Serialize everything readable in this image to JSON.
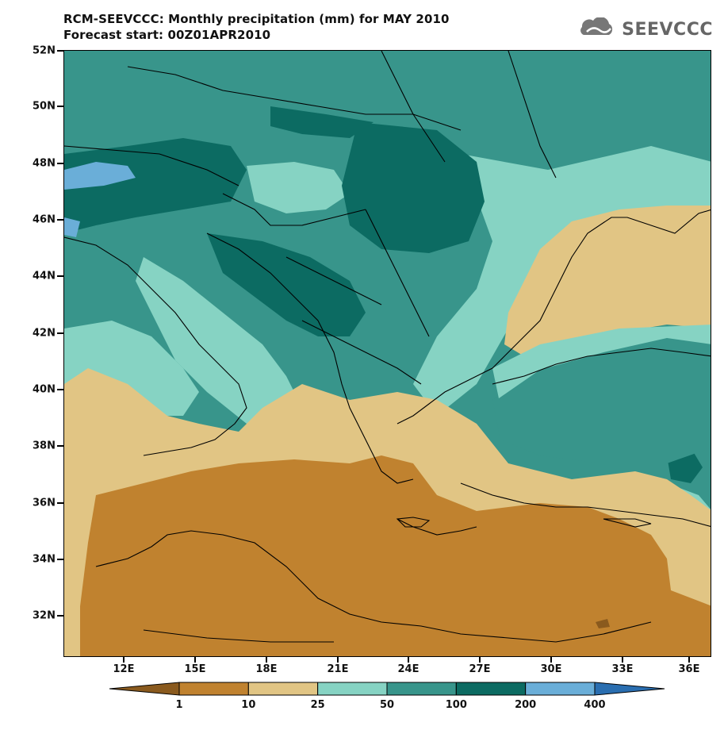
{
  "header": {
    "title_line1": "RCM-SEEVCCC: Monthly precipitation (mm) for MAY 2010",
    "title_line2": "Forecast start: 00Z01APR2010"
  },
  "logo": {
    "text": "SEEVCCC",
    "icon": "cloud-icon"
  },
  "map": {
    "lon_range": [
      9.8,
      37.0
    ],
    "lat_range": [
      30.6,
      52.0
    ],
    "lat_labels": [
      "52N",
      "50N",
      "48N",
      "46N",
      "44N",
      "42N",
      "40N",
      "38N",
      "36N",
      "34N",
      "32N"
    ],
    "lon_labels": [
      "12E",
      "15E",
      "18E",
      "21E",
      "24E",
      "27E",
      "30E",
      "33E",
      "36E"
    ]
  },
  "colorbar": {
    "levels": [
      "1",
      "10",
      "25",
      "50",
      "100",
      "200",
      "400"
    ],
    "colors": [
      "#8a5a1e",
      "#c0822f",
      "#e1c584",
      "#86d3c3",
      "#38958b",
      "#0c6b62",
      "#6aaed8",
      "#2a6eb0"
    ]
  }
}
